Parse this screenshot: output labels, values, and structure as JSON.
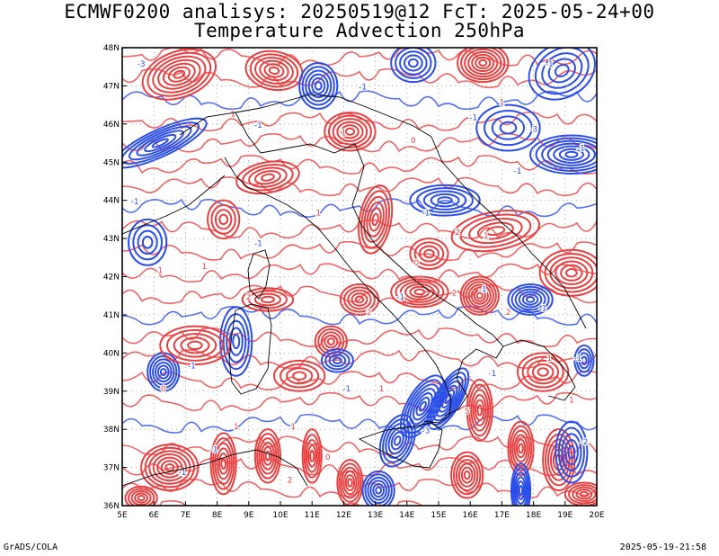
{
  "title_line1": "ECMWF0200 analisys: 20250519@12 FcT: 2025-05-24+00",
  "title_line2": "Temperature Advection 250hPa",
  "footer_left": "GrADS/COLA",
  "footer_right": "2025-05-19-21:58",
  "colors": {
    "positive": "#e84040",
    "negative": "#2b4de8",
    "coast": "#000000",
    "grid": "#9a9a9a"
  },
  "axes": {
    "x_ticks": [
      "5E",
      "6E",
      "7E",
      "8E",
      "9E",
      "10E",
      "11E",
      "12E",
      "13E",
      "14E",
      "15E",
      "16E",
      "17E",
      "18E",
      "19E",
      "20E"
    ],
    "y_ticks": [
      "48N",
      "47N",
      "46N",
      "45N",
      "44N",
      "43N",
      "42N",
      "41N",
      "40N",
      "39N",
      "38N",
      "37N",
      "36N"
    ],
    "lon_range": [
      5,
      20
    ],
    "lat_range": [
      36,
      48
    ]
  },
  "contour_labels": [
    {
      "text": "-1",
      "lon": 5.4,
      "lat": 43.9
    },
    {
      "text": "-3",
      "lon": 5.6,
      "lat": 47.5
    },
    {
      "text": "1",
      "lon": 6.2,
      "lat": 42.1
    },
    {
      "text": "0",
      "lon": 6.3,
      "lat": 39.0
    },
    {
      "text": "-1",
      "lon": 7.2,
      "lat": 39.6
    },
    {
      "text": "1",
      "lon": 7.6,
      "lat": 42.2
    },
    {
      "text": "2",
      "lon": 9.0,
      "lat": 41.4
    },
    {
      "text": "-1",
      "lon": 9.3,
      "lat": 42.8
    },
    {
      "text": "-1",
      "lon": 7.9,
      "lat": 37.4
    },
    {
      "text": "1",
      "lon": 8.6,
      "lat": 38.0
    },
    {
      "text": "1",
      "lon": 10.4,
      "lat": 38.0
    },
    {
      "text": "0",
      "lon": 11.5,
      "lat": 37.2
    },
    {
      "text": "-1",
      "lon": 12.1,
      "lat": 39.0
    },
    {
      "text": "1",
      "lon": 13.2,
      "lat": 39.0
    },
    {
      "text": "2",
      "lon": 12.8,
      "lat": 41.0
    },
    {
      "text": "-1",
      "lon": 13.8,
      "lat": 41.4
    },
    {
      "text": "0",
      "lon": 14.3,
      "lat": 42.3
    },
    {
      "text": "2",
      "lon": 15.5,
      "lat": 41.5
    },
    {
      "text": "-1",
      "lon": 16.4,
      "lat": 41.6
    },
    {
      "text": "2",
      "lon": 17.2,
      "lat": 41.0
    },
    {
      "text": "-1",
      "lon": 18.3,
      "lat": 41.1
    },
    {
      "text": "1",
      "lon": 18.5,
      "lat": 39.8
    },
    {
      "text": "-1",
      "lon": 19.4,
      "lat": 39.8
    },
    {
      "text": "-2",
      "lon": 19.6,
      "lat": 37.6
    },
    {
      "text": "1",
      "lon": 19.2,
      "lat": 38.7
    },
    {
      "text": "-3",
      "lon": 14.6,
      "lat": 37.9
    },
    {
      "text": "5",
      "lon": 15.9,
      "lat": 38.4
    },
    {
      "text": "-1",
      "lon": 16.7,
      "lat": 39.4
    },
    {
      "text": "-1",
      "lon": 17.5,
      "lat": 44.7
    },
    {
      "text": "1",
      "lon": 16.5,
      "lat": 43.0
    },
    {
      "text": "2",
      "lon": 15.6,
      "lat": 43.1
    },
    {
      "text": "-1",
      "lon": 14.6,
      "lat": 43.6
    },
    {
      "text": "1",
      "lon": 11.2,
      "lat": 43.6
    },
    {
      "text": "-1",
      "lon": 12.6,
      "lat": 46.9
    },
    {
      "text": "1",
      "lon": 12.0,
      "lat": 45.7
    },
    {
      "text": "-1",
      "lon": 9.3,
      "lat": 45.9
    },
    {
      "text": "1",
      "lon": 8.5,
      "lat": 46.2
    },
    {
      "text": "0",
      "lon": 14.2,
      "lat": 45.5
    },
    {
      "text": "-1",
      "lon": 18.5,
      "lat": 47.5
    },
    {
      "text": "-3",
      "lon": 18.0,
      "lat": 45.8
    },
    {
      "text": "-1",
      "lon": 19.5,
      "lat": 45.3
    },
    {
      "text": "1",
      "lon": 17.0,
      "lat": 46.5
    },
    {
      "text": "-1",
      "lon": 16.1,
      "lat": 46.1
    },
    {
      "text": "2",
      "lon": 10.3,
      "lat": 36.6
    },
    {
      "text": "-1",
      "lon": 6.9,
      "lat": 36.8
    }
  ]
}
